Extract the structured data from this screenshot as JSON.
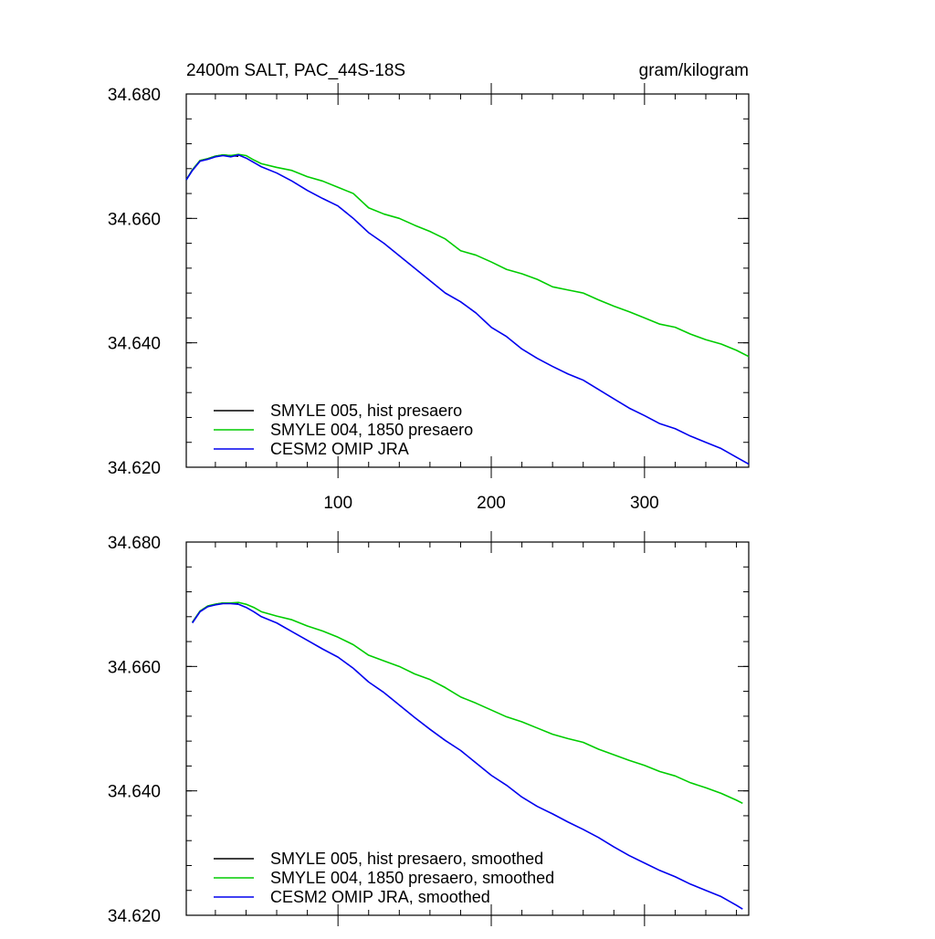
{
  "chart_data": [
    {
      "type": "line",
      "title_left": "2400m SALT, PAC_44S-18S",
      "title_right": "gram/kilogram",
      "xlim": [
        1,
        368
      ],
      "ylim": [
        34.62,
        34.68
      ],
      "x_ticks": [
        100,
        200,
        300
      ],
      "x_tick_labels": [
        "100",
        "200",
        "300"
      ],
      "y_ticks": [
        34.62,
        34.64,
        34.66,
        34.68
      ],
      "y_tick_labels": [
        "34.620",
        "34.640",
        "34.660",
        "34.680"
      ],
      "legend_position": "bottom-left",
      "series": [
        {
          "name": "SMYLE 005, hist presaero",
          "color": "#000000",
          "x": [
            1,
            5,
            10,
            15,
            20,
            25,
            30,
            35
          ],
          "y": [
            34.6662,
            34.6678,
            34.6693,
            34.6696,
            34.67,
            34.6702,
            34.6701,
            34.67
          ]
        },
        {
          "name": "SMYLE 004, 1850 presaero",
          "color": "#00cc00",
          "x": [
            1,
            5,
            10,
            15,
            20,
            25,
            30,
            35,
            40,
            45,
            50,
            60,
            70,
            80,
            90,
            100,
            110,
            120,
            130,
            140,
            150,
            160,
            170,
            180,
            190,
            200,
            210,
            220,
            230,
            240,
            250,
            260,
            270,
            280,
            290,
            300,
            310,
            320,
            330,
            340,
            350,
            360,
            368
          ],
          "y": [
            34.6662,
            34.6678,
            34.6693,
            34.6696,
            34.67,
            34.6702,
            34.6701,
            34.6703,
            34.6701,
            34.6694,
            34.6688,
            34.6682,
            34.6677,
            34.6667,
            34.666,
            34.665,
            34.664,
            34.6617,
            34.6607,
            34.66,
            34.6589,
            34.6579,
            34.6567,
            34.6548,
            34.6541,
            34.653,
            34.6518,
            34.6511,
            34.6502,
            34.649,
            34.6485,
            34.648,
            34.6469,
            34.6459,
            34.645,
            34.644,
            34.643,
            34.6425,
            34.6414,
            34.6405,
            34.6398,
            34.6388,
            34.6378
          ]
        },
        {
          "name": "CESM2 OMIP JRA",
          "color": "#0000ee",
          "x": [
            1,
            5,
            10,
            15,
            20,
            25,
            30,
            35,
            40,
            45,
            50,
            60,
            70,
            80,
            90,
            100,
            110,
            120,
            130,
            140,
            150,
            160,
            170,
            180,
            190,
            200,
            210,
            220,
            230,
            240,
            250,
            260,
            270,
            280,
            290,
            300,
            310,
            320,
            330,
            340,
            350,
            360,
            368
          ],
          "y": [
            34.6662,
            34.6677,
            34.6692,
            34.6695,
            34.6699,
            34.6701,
            34.6699,
            34.6702,
            34.6697,
            34.669,
            34.6683,
            34.6673,
            34.666,
            34.6645,
            34.6632,
            34.662,
            34.66,
            34.6577,
            34.656,
            34.654,
            34.652,
            34.65,
            34.648,
            34.6466,
            34.6448,
            34.6425,
            34.641,
            34.639,
            34.6375,
            34.6362,
            34.635,
            34.634,
            34.6325,
            34.631,
            34.6295,
            34.6283,
            34.627,
            34.6262,
            34.625,
            34.624,
            34.623,
            34.6216,
            34.6205
          ]
        }
      ],
      "legend": [
        {
          "label": "SMYLE 005, hist presaero",
          "color": "#000000"
        },
        {
          "label": "SMYLE 004, 1850 presaero",
          "color": "#00cc00"
        },
        {
          "label": "CESM2 OMIP JRA",
          "color": "#0000ee"
        }
      ]
    },
    {
      "type": "line",
      "xlim": [
        1,
        368
      ],
      "ylim": [
        34.62,
        34.68
      ],
      "x_ticks": [
        100,
        200,
        300
      ],
      "x_tick_labels": [],
      "y_ticks": [
        34.62,
        34.64,
        34.66,
        34.68
      ],
      "y_tick_labels": [
        "34.620",
        "34.640",
        "34.660",
        "34.680"
      ],
      "legend_position": "bottom-left",
      "series": [
        {
          "name": "SMYLE 005, hist presaero, smoothed",
          "color": "#000000",
          "x": [
            5,
            10,
            15,
            20,
            25,
            30,
            35
          ],
          "y": [
            34.6671,
            34.6689,
            34.6697,
            34.67,
            34.6702,
            34.6702,
            34.6701
          ]
        },
        {
          "name": "SMYLE 004, 1850 presaero, smoothed",
          "color": "#00cc00",
          "x": [
            5,
            10,
            15,
            20,
            25,
            30,
            35,
            40,
            45,
            50,
            60,
            70,
            80,
            90,
            100,
            110,
            120,
            130,
            140,
            150,
            160,
            170,
            180,
            190,
            200,
            210,
            220,
            230,
            240,
            250,
            260,
            270,
            280,
            290,
            300,
            310,
            320,
            330,
            340,
            350,
            360,
            364
          ],
          "y": [
            34.6671,
            34.6689,
            34.6697,
            34.67,
            34.6702,
            34.6702,
            34.6703,
            34.67,
            34.6695,
            34.6688,
            34.6681,
            34.6675,
            34.6665,
            34.6657,
            34.6647,
            34.6635,
            34.6618,
            34.6609,
            34.66,
            34.6588,
            34.6579,
            34.6566,
            34.6551,
            34.6541,
            34.653,
            34.6519,
            34.6511,
            34.6501,
            34.6491,
            34.6484,
            34.6478,
            34.6467,
            34.6458,
            34.6449,
            34.6441,
            34.6431,
            34.6424,
            34.6413,
            34.6405,
            34.6396,
            34.6385,
            34.638
          ]
        },
        {
          "name": "CESM2 OMIP JRA, smoothed",
          "color": "#0000ee",
          "x": [
            5,
            10,
            15,
            20,
            25,
            30,
            35,
            40,
            45,
            50,
            60,
            70,
            80,
            90,
            100,
            110,
            120,
            130,
            140,
            150,
            160,
            170,
            180,
            190,
            200,
            210,
            220,
            230,
            240,
            250,
            260,
            270,
            280,
            290,
            300,
            310,
            320,
            330,
            340,
            350,
            360,
            364
          ],
          "y": [
            34.667,
            34.6688,
            34.6696,
            34.6699,
            34.6701,
            34.6701,
            34.67,
            34.6695,
            34.6688,
            34.668,
            34.667,
            34.6656,
            34.6642,
            34.6628,
            34.6615,
            34.6597,
            34.6575,
            34.6558,
            34.6538,
            34.6518,
            34.6499,
            34.6481,
            34.6465,
            34.6445,
            34.6425,
            34.6409,
            34.639,
            34.6375,
            34.6363,
            34.635,
            34.6338,
            34.6325,
            34.631,
            34.6296,
            34.6284,
            34.6272,
            34.6262,
            34.625,
            34.624,
            34.623,
            34.6216,
            34.621
          ]
        }
      ],
      "legend": [
        {
          "label": "SMYLE 005, hist presaero, smoothed",
          "color": "#000000"
        },
        {
          "label": "SMYLE 004, 1850 presaero, smoothed",
          "color": "#00cc00"
        },
        {
          "label": "CESM2 OMIP JRA, smoothed",
          "color": "#0000ee"
        }
      ]
    }
  ]
}
